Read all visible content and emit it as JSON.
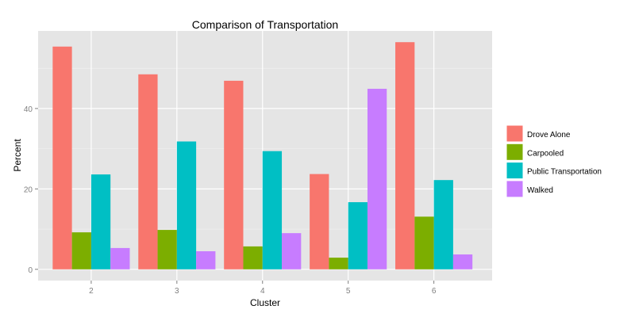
{
  "chart_data": {
    "type": "bar",
    "title": "Comparison of Transportation",
    "xlabel": "Cluster",
    "ylabel": "Percent",
    "categories": [
      "2",
      "3",
      "4",
      "5",
      "6"
    ],
    "yticks": [
      0,
      20,
      40
    ],
    "ylim": [
      -2.8,
      59.3
    ],
    "grid": true,
    "legend_position": "right",
    "series": [
      {
        "name": "Drove Alone",
        "color": "#F8766D",
        "values": [
          55.4,
          48.5,
          46.9,
          23.7,
          56.5
        ]
      },
      {
        "name": "Carpooled",
        "color": "#7CAE00",
        "values": [
          9.2,
          9.8,
          5.7,
          2.9,
          13.1
        ]
      },
      {
        "name": "Public Transportation",
        "color": "#00BFC4",
        "values": [
          23.6,
          31.8,
          29.4,
          16.7,
          22.2
        ]
      },
      {
        "name": "Walked",
        "color": "#C77CFF",
        "values": [
          5.3,
          4.5,
          9.0,
          44.9,
          3.7
        ]
      }
    ]
  }
}
